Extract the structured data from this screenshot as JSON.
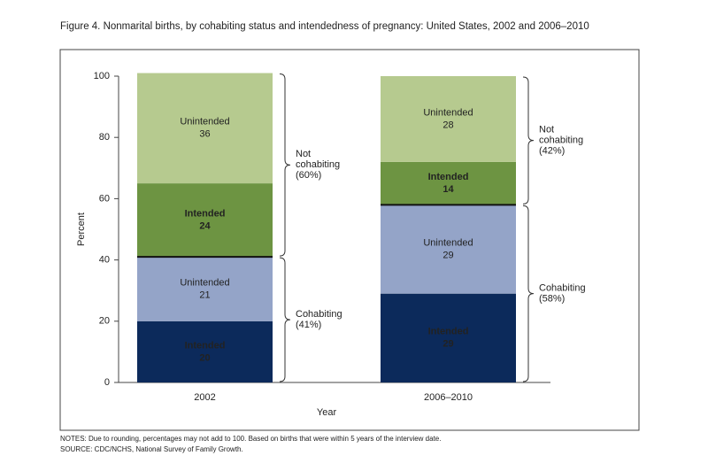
{
  "chart_data": {
    "type": "stacked-bar",
    "title": "Figure 4. Nonmarital births, by cohabiting status and intendedness of pregnancy: United States, 2002 and 2006–2010",
    "y_label": "Percent",
    "x_label": "Year",
    "categories": [
      "2002",
      "2006–2010"
    ],
    "series": [
      {
        "name": "Intended",
        "color": "#0c2a5b",
        "values": [
          20,
          29
        ]
      },
      {
        "name": "Unintended",
        "color": "#94a4c8",
        "values": [
          21,
          29
        ]
      },
      {
        "name": "Intended",
        "color": "#6d9442",
        "values": [
          24,
          14
        ]
      },
      {
        "name": "Unintended",
        "color": "#b6ca8f",
        "values": [
          36,
          28
        ]
      }
    ],
    "brackets": [
      [
        [
          "Cohabiting",
          "(41%)"
        ],
        [
          "Not",
          "cohabiting",
          "(60%)"
        ]
      ],
      [
        [
          "Cohabiting",
          "(58%)"
        ],
        [
          "Not",
          "cohabiting",
          "(42%)"
        ]
      ]
    ],
    "ylim": [
      0,
      100
    ],
    "yticks": [
      0,
      20,
      40,
      60,
      80,
      100
    ],
    "notes": [
      "NOTES: Due to rounding, percentages may not add to 100. Based on births that were within 5 years of the interview date.",
      "SOURCE: CDC/NCHS, National Survey of Family Growth."
    ]
  }
}
